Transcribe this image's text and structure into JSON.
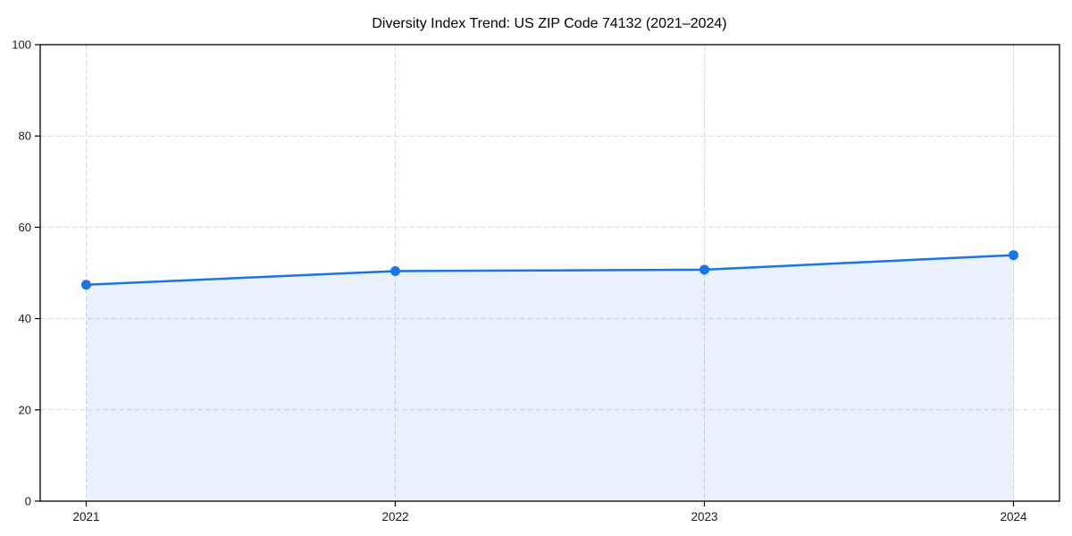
{
  "chart_data": {
    "type": "area",
    "title": "Diversity Index Trend: US ZIP Code 74132 (2021–2024)",
    "series_name": "Diversity Index",
    "categories": [
      "2021",
      "2022",
      "2023",
      "2024"
    ],
    "x": [
      2021,
      2022,
      2023,
      2024
    ],
    "values": [
      47.4,
      50.4,
      50.7,
      53.9
    ],
    "xlabel": "",
    "ylabel": "",
    "ylim": [
      0,
      100
    ],
    "yticks": [
      0,
      20,
      40,
      60,
      80,
      100
    ],
    "grid": "dashed, horizontal and vertical at ticks",
    "legend_position": "none",
    "marker": "circle",
    "colors": {
      "line": "#1a73e8",
      "marker": "#1a73e8",
      "fill": "#1a73e8",
      "fill_opacity": 0.1,
      "grid": "#dcdcdc",
      "spine": "#000000",
      "tick_text": "#1a1a1a",
      "title_text": "#000000",
      "background": "#ffffff"
    }
  }
}
